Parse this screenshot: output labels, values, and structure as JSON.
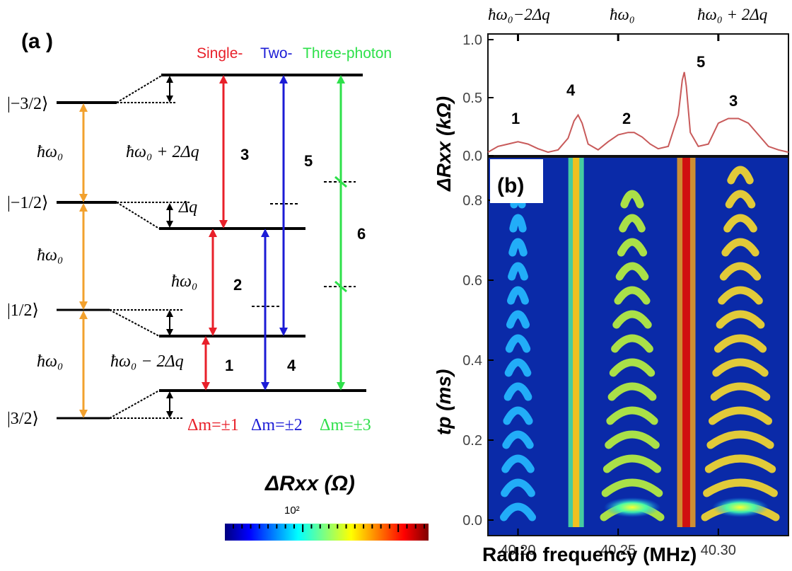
{
  "panel_a": {
    "label": "(a )",
    "states": [
      "|−3/2⟩",
      "|−1/2⟩",
      "|1/2⟩",
      "|3/2⟩"
    ],
    "zeeman_labels": [
      "ħω₀",
      "ħω₀",
      "ħω₀"
    ],
    "quad_labels": {
      "plus": "ħω₀ + 2Δq",
      "delta": "Δq",
      "mid": "ħω₀",
      "minus": "ħω₀ − 2Δq"
    },
    "headers": {
      "single": "Single-",
      "two": "Two-",
      "three": "Three-photon"
    },
    "transition_numbers": [
      "1",
      "2",
      "3",
      "4",
      "5",
      "6"
    ],
    "selection_rules": [
      "Δm=±1",
      "Δm=±2",
      "Δm=±3"
    ],
    "colors": {
      "single": "#e8202a",
      "two": "#1c1cd6",
      "three": "#2ee04a",
      "zeeman": "#f2a12e"
    }
  },
  "colorbar": {
    "label": "ΔRxx (Ω)",
    "tick_label": "10²"
  },
  "panel_b": {
    "label": "(b)",
    "top_labels": [
      "ħω₀−2Δq",
      "ħω₀",
      "ħω₀ + 2Δq"
    ],
    "peak_numbers": [
      "1",
      "4",
      "2",
      "5",
      "3"
    ],
    "x_label": "Radio frequency  (MHz)",
    "top_y_label": "ΔRxx (kΩ)",
    "bottom_y_label": "tp (ms)"
  },
  "chart_data": [
    {
      "type": "line",
      "title": "",
      "xlabel": "",
      "ylabel": "ΔRxx (kΩ)",
      "xlim": [
        40.185,
        40.335
      ],
      "ylim": [
        0,
        1.0
      ],
      "yticks": [
        0.0,
        0.5,
        1.0
      ],
      "grid": false,
      "series": [
        {
          "x": [
            40.185,
            40.19,
            40.195,
            40.2,
            40.205,
            40.21,
            40.215,
            40.22,
            40.225,
            40.228,
            40.23,
            40.232,
            40.235,
            40.24,
            40.245,
            40.25,
            40.255,
            40.258,
            40.262,
            40.266,
            40.27,
            40.275,
            40.28,
            40.282,
            40.283,
            40.284,
            40.286,
            40.29,
            40.295,
            40.3,
            40.305,
            40.31,
            40.315,
            40.32,
            40.325,
            40.33,
            40.335
          ],
          "values": [
            0.03,
            0.08,
            0.1,
            0.12,
            0.1,
            0.06,
            0.03,
            0.05,
            0.15,
            0.3,
            0.35,
            0.28,
            0.1,
            0.05,
            0.12,
            0.18,
            0.2,
            0.2,
            0.16,
            0.1,
            0.06,
            0.08,
            0.35,
            0.65,
            0.72,
            0.6,
            0.2,
            0.08,
            0.1,
            0.28,
            0.32,
            0.32,
            0.28,
            0.18,
            0.08,
            0.05,
            0.03
          ]
        }
      ]
    },
    {
      "type": "heatmap",
      "title": "",
      "xlabel": "Radio frequency  (MHz)",
      "ylabel": "tp (ms)",
      "xlim": [
        40.185,
        40.335
      ],
      "ylim": [
        0,
        0.9
      ],
      "xticks": [
        40.2,
        40.25,
        40.3
      ],
      "yticks": [
        0.0,
        0.2,
        0.4,
        0.6,
        0.8
      ],
      "grid": false,
      "peaks_mhz": [
        40.2,
        40.229,
        40.257,
        40.284,
        40.311
      ]
    }
  ]
}
